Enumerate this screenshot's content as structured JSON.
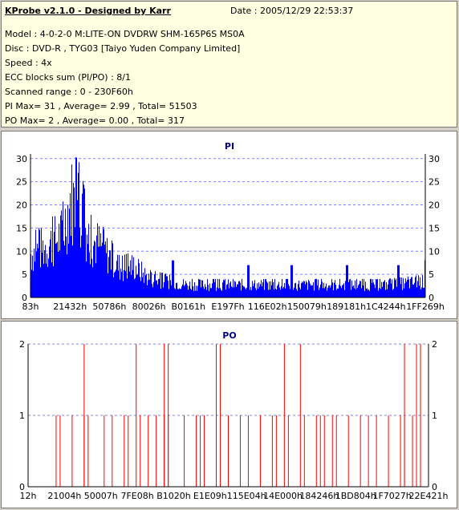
{
  "header": {
    "title": "KProbe v2.1.0 - Designed by Karr",
    "date": "Date : 2005/12/29 22:53:37",
    "lines": [
      "Model : 4-0-2-0 M:LITE-ON DVDRW SHM-165P6S MS0A",
      "Disc : DVD-R , TYG03 [Taiyo Yuden Company Limited]",
      "Speed : 4x",
      "ECC blocks sum (PI/PO) : 8/1",
      "Scanned range : 0 - 230F60h",
      "PI Max= 31 , Average= 2.99 , Total= 51503",
      "PO Max= 2 , Average= 0.00 , Total= 317"
    ]
  },
  "colors": {
    "pi": "#0000ff",
    "po": "#ff0000",
    "grid": "#7f7fff",
    "title": "#000080"
  },
  "chart_data": [
    {
      "type": "bar",
      "title": "PI",
      "ylim": [
        0,
        31
      ],
      "yticks": [
        0,
        5,
        10,
        15,
        20,
        25,
        30
      ],
      "xtick_labels": [
        "83h",
        "21432h",
        "50786h",
        "80026h",
        "B0161h",
        "E197Fh",
        "116E02h",
        "150079h",
        "189181h",
        "1C4244h",
        "1FF269h"
      ],
      "envelope_x": [
        0,
        0.02,
        0.05,
        0.08,
        0.1,
        0.12,
        0.15,
        0.17,
        0.2,
        0.23,
        0.26,
        0.3,
        0.35,
        0.4,
        0.5,
        0.6,
        0.7,
        0.8,
        0.9,
        1.0
      ],
      "envelope_max": [
        14,
        15,
        17,
        20,
        31,
        30,
        18,
        17,
        13,
        9,
        10,
        6,
        5,
        4,
        4,
        4,
        4,
        4,
        4,
        5
      ],
      "spikes": [
        [
          0.36,
          8
        ],
        [
          0.55,
          7
        ],
        [
          0.66,
          7
        ],
        [
          0.8,
          7
        ],
        [
          0.93,
          7
        ],
        [
          1.0,
          8
        ]
      ]
    },
    {
      "type": "bar",
      "title": "PO",
      "ylim": [
        0,
        2
      ],
      "yticks": [
        0,
        1,
        2
      ],
      "xtick_labels": [
        "12h",
        "21004h",
        "50007h",
        "7FE08h",
        "B1020h",
        "E1E09h",
        "115E04h",
        "14E000h",
        "184246h",
        "1BD804h",
        "1F7027h",
        "22E421h"
      ],
      "ones": [
        0.07,
        0.08,
        0.11,
        0.14,
        0.15,
        0.19,
        0.21,
        0.24,
        0.25,
        0.28,
        0.3,
        0.32,
        0.34,
        0.35,
        0.39,
        0.42,
        0.43,
        0.44,
        0.47,
        0.5,
        0.53,
        0.55,
        0.58,
        0.61,
        0.62,
        0.65,
        0.69,
        0.72,
        0.73,
        0.74,
        0.76,
        0.77,
        0.8,
        0.83,
        0.85,
        0.87,
        0.9,
        0.93,
        0.94,
        0.96,
        0.98
      ],
      "twos": [
        0.14,
        0.27,
        0.34,
        0.35,
        0.47,
        0.48,
        0.64,
        0.68,
        0.94,
        0.97,
        0.98
      ]
    }
  ]
}
